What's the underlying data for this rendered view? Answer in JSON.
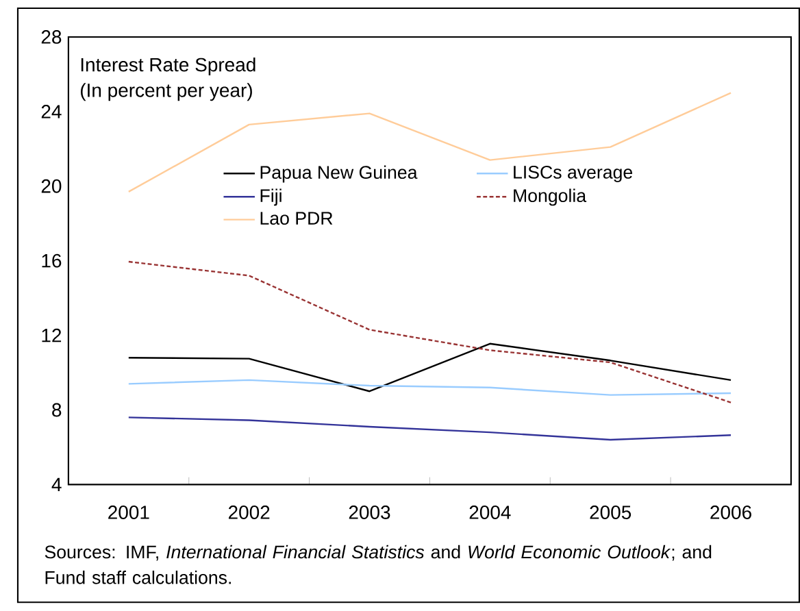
{
  "chart_data": {
    "type": "line",
    "title": "Interest Rate Spread",
    "subtitle": "(In percent per year)",
    "categories": [
      "2001",
      "2002",
      "2003",
      "2004",
      "2005",
      "2006"
    ],
    "series": [
      {
        "name": "Papua New Guinea",
        "color": "#000000",
        "line_style": "solid",
        "values": [
          10.8,
          10.75,
          9.0,
          11.55,
          10.65,
          9.6
        ]
      },
      {
        "name": "LISCs average",
        "color": "#99ccff",
        "line_style": "solid",
        "values": [
          9.4,
          9.6,
          9.3,
          9.2,
          8.8,
          8.9
        ]
      },
      {
        "name": "Fiji",
        "color": "#333399",
        "line_style": "solid",
        "values": [
          7.6,
          7.45,
          7.1,
          6.8,
          6.4,
          6.65
        ]
      },
      {
        "name": "Mongolia",
        "color": "#993333",
        "line_style": "dashed",
        "values": [
          15.95,
          15.2,
          12.3,
          11.2,
          10.55,
          8.4
        ]
      },
      {
        "name": "Lao PDR",
        "color": "#ffcc99",
        "line_style": "solid",
        "values": [
          19.7,
          23.3,
          23.9,
          21.4,
          22.1,
          25.0
        ]
      }
    ],
    "ylim": [
      4,
      28
    ],
    "yticks": [
      4,
      8,
      12,
      16,
      20,
      24,
      28
    ],
    "grid": false,
    "legend": "top",
    "marker": "none",
    "annotations": [
      "Sources: IMF, *International Financial Statistics* and *World Economic Outlook*; and Fund staff calculations."
    ]
  }
}
